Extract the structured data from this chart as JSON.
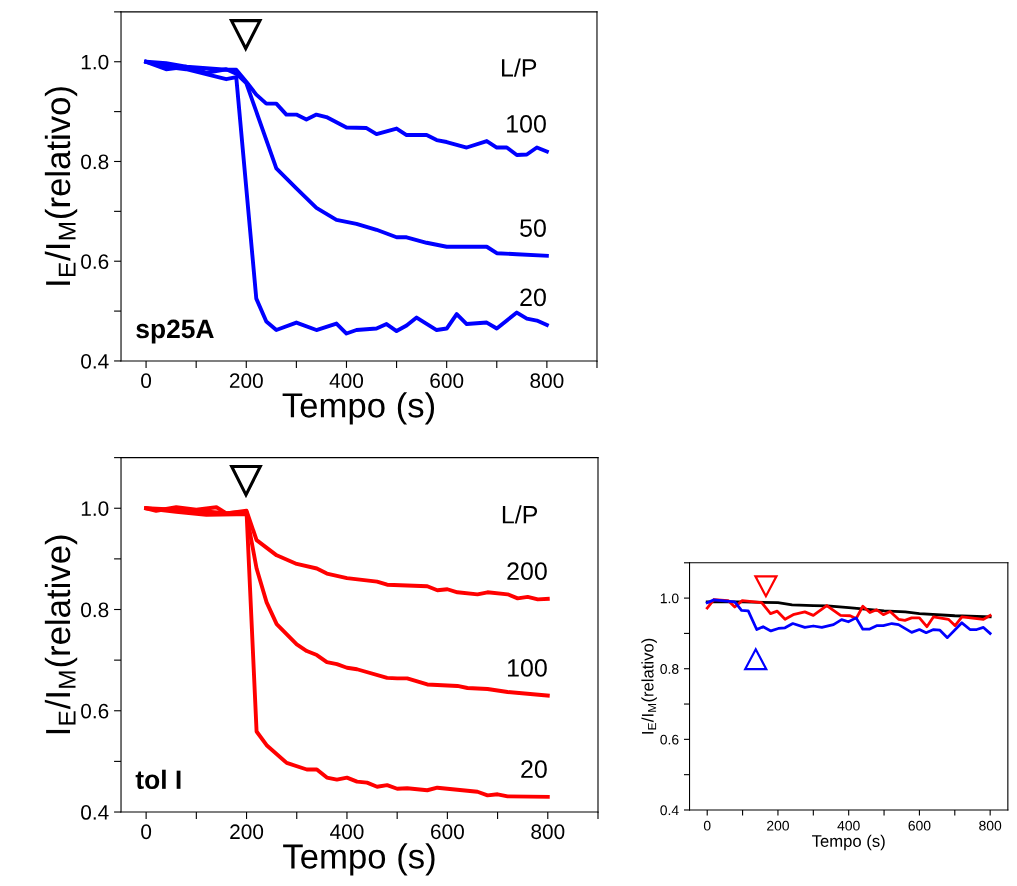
{
  "chart_data": [
    {
      "type": "line",
      "xlabel": "Tempo (s)",
      "ylabel": "I$_{E}$/I$_{M}$(relativo)",
      "xlim": [
        -50,
        900
      ],
      "ylim": [
        0.4,
        1.1
      ],
      "xticks": [
        0,
        {
          "value": 100,
          "label": null
        },
        200,
        {
          "value": 300,
          "label": null
        },
        400,
        {
          "value": 500,
          "label": null
        },
        600,
        {
          "value": 700,
          "label": null
        },
        800,
        {
          "value": 900,
          "label": null
        }
      ],
      "yticks": [
        {
          "value": 0.4,
          "label": "0.4"
        },
        {
          "value": 0.5,
          "label": null
        },
        {
          "value": 0.6,
          "label": "0.6"
        },
        {
          "value": 0.7,
          "label": null
        },
        {
          "value": 0.8,
          "label": "0.8"
        },
        {
          "value": 0.9,
          "label": null
        },
        {
          "value": 1.0,
          "label": "1.0"
        },
        {
          "value": 1.1,
          "label": null
        }
      ],
      "grid": false,
      "legend": false,
      "marker": "none",
      "line_style": "solid",
      "annotations": [
        "sp25A",
        "L/P"
      ],
      "series": [
        {
          "name": "100",
          "color": "#0000ff",
          "x": [
            0,
            40,
            80,
            120,
            160,
            180,
            200,
            220,
            240,
            260,
            280,
            300,
            320,
            340,
            360,
            400,
            440,
            460,
            500,
            520,
            560,
            580,
            600,
            640,
            680,
            700,
            720,
            740,
            760,
            780,
            800
          ],
          "values": [
            1.0,
            0.997,
            0.99,
            0.987,
            0.984,
            0.984,
            0.96,
            0.934,
            0.916,
            0.916,
            0.894,
            0.894,
            0.884,
            0.894,
            0.889,
            0.868,
            0.867,
            0.855,
            0.866,
            0.853,
            0.853,
            0.843,
            0.839,
            0.828,
            0.841,
            0.828,
            0.828,
            0.813,
            0.814,
            0.828,
            0.82
          ]
        },
        {
          "name": "50",
          "color": "#0000ff",
          "x": [
            0,
            40,
            80,
            120,
            160,
            180,
            200,
            260,
            300,
            340,
            380,
            420,
            460,
            500,
            520,
            560,
            600,
            640,
            680,
            700,
            740,
            800
          ],
          "values": [
            1.0,
            0.985,
            0.99,
            0.978,
            0.985,
            0.976,
            0.957,
            0.786,
            0.746,
            0.707,
            0.683,
            0.675,
            0.663,
            0.648,
            0.648,
            0.637,
            0.629,
            0.629,
            0.629,
            0.616,
            0.614,
            0.611
          ]
        },
        {
          "name": "20",
          "color": "#0000ff",
          "x": [
            0,
            40,
            80,
            120,
            160,
            180,
            220,
            240,
            260,
            300,
            340,
            380,
            400,
            420,
            460,
            480,
            500,
            520,
            540,
            580,
            600,
            620,
            640,
            680,
            700,
            740,
            760,
            780,
            800
          ],
          "values": [
            1.0,
            0.99,
            0.985,
            0.975,
            0.965,
            0.969,
            0.525,
            0.479,
            0.462,
            0.477,
            0.462,
            0.475,
            0.455,
            0.462,
            0.465,
            0.474,
            0.46,
            0.471,
            0.487,
            0.462,
            0.465,
            0.494,
            0.474,
            0.477,
            0.465,
            0.497,
            0.485,
            0.481,
            0.472
          ]
        }
      ]
    },
    {
      "type": "line",
      "xlabel": "Tempo (s)",
      "ylabel": "I$_{E}$/I$_{M}$(relative)",
      "xlim": [
        -50,
        900
      ],
      "ylim": [
        0.4,
        1.1
      ],
      "xticks": [
        0,
        {
          "value": 100,
          "label": null
        },
        200,
        {
          "value": 300,
          "label": null
        },
        400,
        {
          "value": 500,
          "label": null
        },
        600,
        {
          "value": 700,
          "label": null
        },
        800,
        {
          "value": 900,
          "label": null
        }
      ],
      "yticks": [
        {
          "value": 0.4,
          "label": "0.4"
        },
        {
          "value": 0.5,
          "label": null
        },
        {
          "value": 0.6,
          "label": "0.6"
        },
        {
          "value": 0.7,
          "label": null
        },
        {
          "value": 0.8,
          "label": "0.8"
        },
        {
          "value": 0.9,
          "label": null
        },
        {
          "value": 1.0,
          "label": "1.0"
        },
        {
          "value": 1.1,
          "label": null
        }
      ],
      "grid": false,
      "legend": false,
      "marker": "none",
      "line_style": "solid",
      "annotations": [
        "tol I",
        "L/P"
      ],
      "series": [
        {
          "name": "200",
          "color": "#ff0000",
          "x": [
            0,
            60,
            100,
            160,
            200,
            220,
            260,
            300,
            340,
            360,
            400,
            460,
            480,
            560,
            580,
            600,
            620,
            660,
            680,
            720,
            740,
            760,
            780,
            800
          ],
          "values": [
            1.0,
            0.997,
            0.995,
            0.99,
            0.995,
            0.937,
            0.907,
            0.89,
            0.881,
            0.871,
            0.862,
            0.855,
            0.849,
            0.846,
            0.838,
            0.84,
            0.834,
            0.83,
            0.834,
            0.83,
            0.822,
            0.825,
            0.82,
            0.821
          ]
        },
        {
          "name": "100",
          "color": "#ff0000",
          "x": [
            0,
            60,
            120,
            180,
            200,
            220,
            240,
            260,
            300,
            320,
            340,
            360,
            380,
            400,
            420,
            480,
            500,
            520,
            560,
            600,
            620,
            640,
            680,
            720,
            800
          ],
          "values": [
            1.0,
            0.993,
            0.987,
            0.988,
            0.988,
            0.881,
            0.814,
            0.771,
            0.731,
            0.718,
            0.71,
            0.696,
            0.692,
            0.685,
            0.682,
            0.665,
            0.664,
            0.664,
            0.652,
            0.65,
            0.649,
            0.645,
            0.643,
            0.637,
            0.63
          ]
        },
        {
          "name": "20",
          "color": "#ff0000",
          "x": [
            0,
            20,
            60,
            100,
            140,
            160,
            200,
            220,
            240,
            280,
            320,
            340,
            360,
            380,
            400,
            420,
            440,
            460,
            480,
            500,
            520,
            560,
            580,
            600,
            640,
            660,
            680,
            700,
            720,
            800
          ],
          "values": [
            1.0,
            0.995,
            1.002,
            0.997,
            1.002,
            0.99,
            0.993,
            0.559,
            0.532,
            0.497,
            0.484,
            0.484,
            0.468,
            0.464,
            0.468,
            0.46,
            0.458,
            0.45,
            0.453,
            0.446,
            0.447,
            0.443,
            0.448,
            0.446,
            0.442,
            0.44,
            0.433,
            0.435,
            0.431,
            0.43
          ]
        }
      ]
    },
    {
      "type": "line",
      "xlabel": "Tempo (s)",
      "ylabel": "I$_{E}$/I$_{M}$(relativo)",
      "xlim": [
        -50,
        850
      ],
      "ylim": [
        0.4,
        1.1
      ],
      "xticks": [
        0,
        {
          "value": 100,
          "label": null
        },
        200,
        {
          "value": 300,
          "label": null
        },
        400,
        {
          "value": 500,
          "label": null
        },
        600,
        {
          "value": 700,
          "label": null
        },
        800
      ],
      "yticks": [
        {
          "value": 0.4,
          "label": "0.4"
        },
        {
          "value": 0.5,
          "label": null
        },
        {
          "value": 0.6,
          "label": "0.6"
        },
        {
          "value": 0.7,
          "label": null
        },
        {
          "value": 0.8,
          "label": "0.8"
        },
        {
          "value": 0.9,
          "label": null
        },
        {
          "value": 1.0,
          "label": "1.0"
        },
        {
          "value": 1.1,
          "label": null
        }
      ],
      "grid": false,
      "legend": false,
      "marker": "none",
      "line_style": "solid",
      "series": [
        {
          "color": "#000000",
          "x": [
            0,
            100,
            200,
            240,
            300,
            340,
            400,
            500,
            560,
            600,
            700,
            800
          ],
          "values": [
            0.989,
            0.989,
            0.987,
            0.981,
            0.979,
            0.978,
            0.973,
            0.964,
            0.961,
            0.956,
            0.95,
            0.947
          ]
        },
        {
          "color": "#ff0000",
          "x": [
            0,
            19,
            59,
            78,
            99,
            154,
            179,
            198,
            220,
            243,
            276,
            300,
            338,
            377,
            404,
            421,
            440,
            460,
            479,
            498,
            517,
            541,
            559,
            578,
            600,
            621,
            640,
            682,
            701,
            720,
            781,
            800
          ],
          "values": [
            0.972,
            0.996,
            0.993,
            0.975,
            0.993,
            0.987,
            0.956,
            0.963,
            0.94,
            0.953,
            0.961,
            0.951,
            0.979,
            0.951,
            0.95,
            0.942,
            0.977,
            0.959,
            0.967,
            0.953,
            0.962,
            0.94,
            0.937,
            0.944,
            0.944,
            0.919,
            0.947,
            0.94,
            0.922,
            0.947,
            0.94,
            0.951
          ]
        },
        {
          "color": "#0000ff",
          "x": [
            0,
            19,
            78,
            97,
            116,
            140,
            158,
            180,
            201,
            220,
            242,
            276,
            300,
            324,
            357,
            380,
            399,
            421,
            440,
            458,
            479,
            498,
            522,
            541,
            578,
            600,
            619,
            640,
            658,
            679,
            720,
            743,
            762,
            781,
            800
          ],
          "values": [
            0.987,
            0.995,
            0.989,
            0.965,
            0.964,
            0.911,
            0.919,
            0.907,
            0.914,
            0.916,
            0.928,
            0.917,
            0.921,
            0.917,
            0.925,
            0.939,
            0.933,
            0.944,
            0.912,
            0.912,
            0.922,
            0.922,
            0.928,
            0.925,
            0.903,
            0.911,
            0.902,
            0.911,
            0.909,
            0.888,
            0.93,
            0.911,
            0.911,
            0.917,
            0.9
          ]
        }
      ]
    }
  ]
}
